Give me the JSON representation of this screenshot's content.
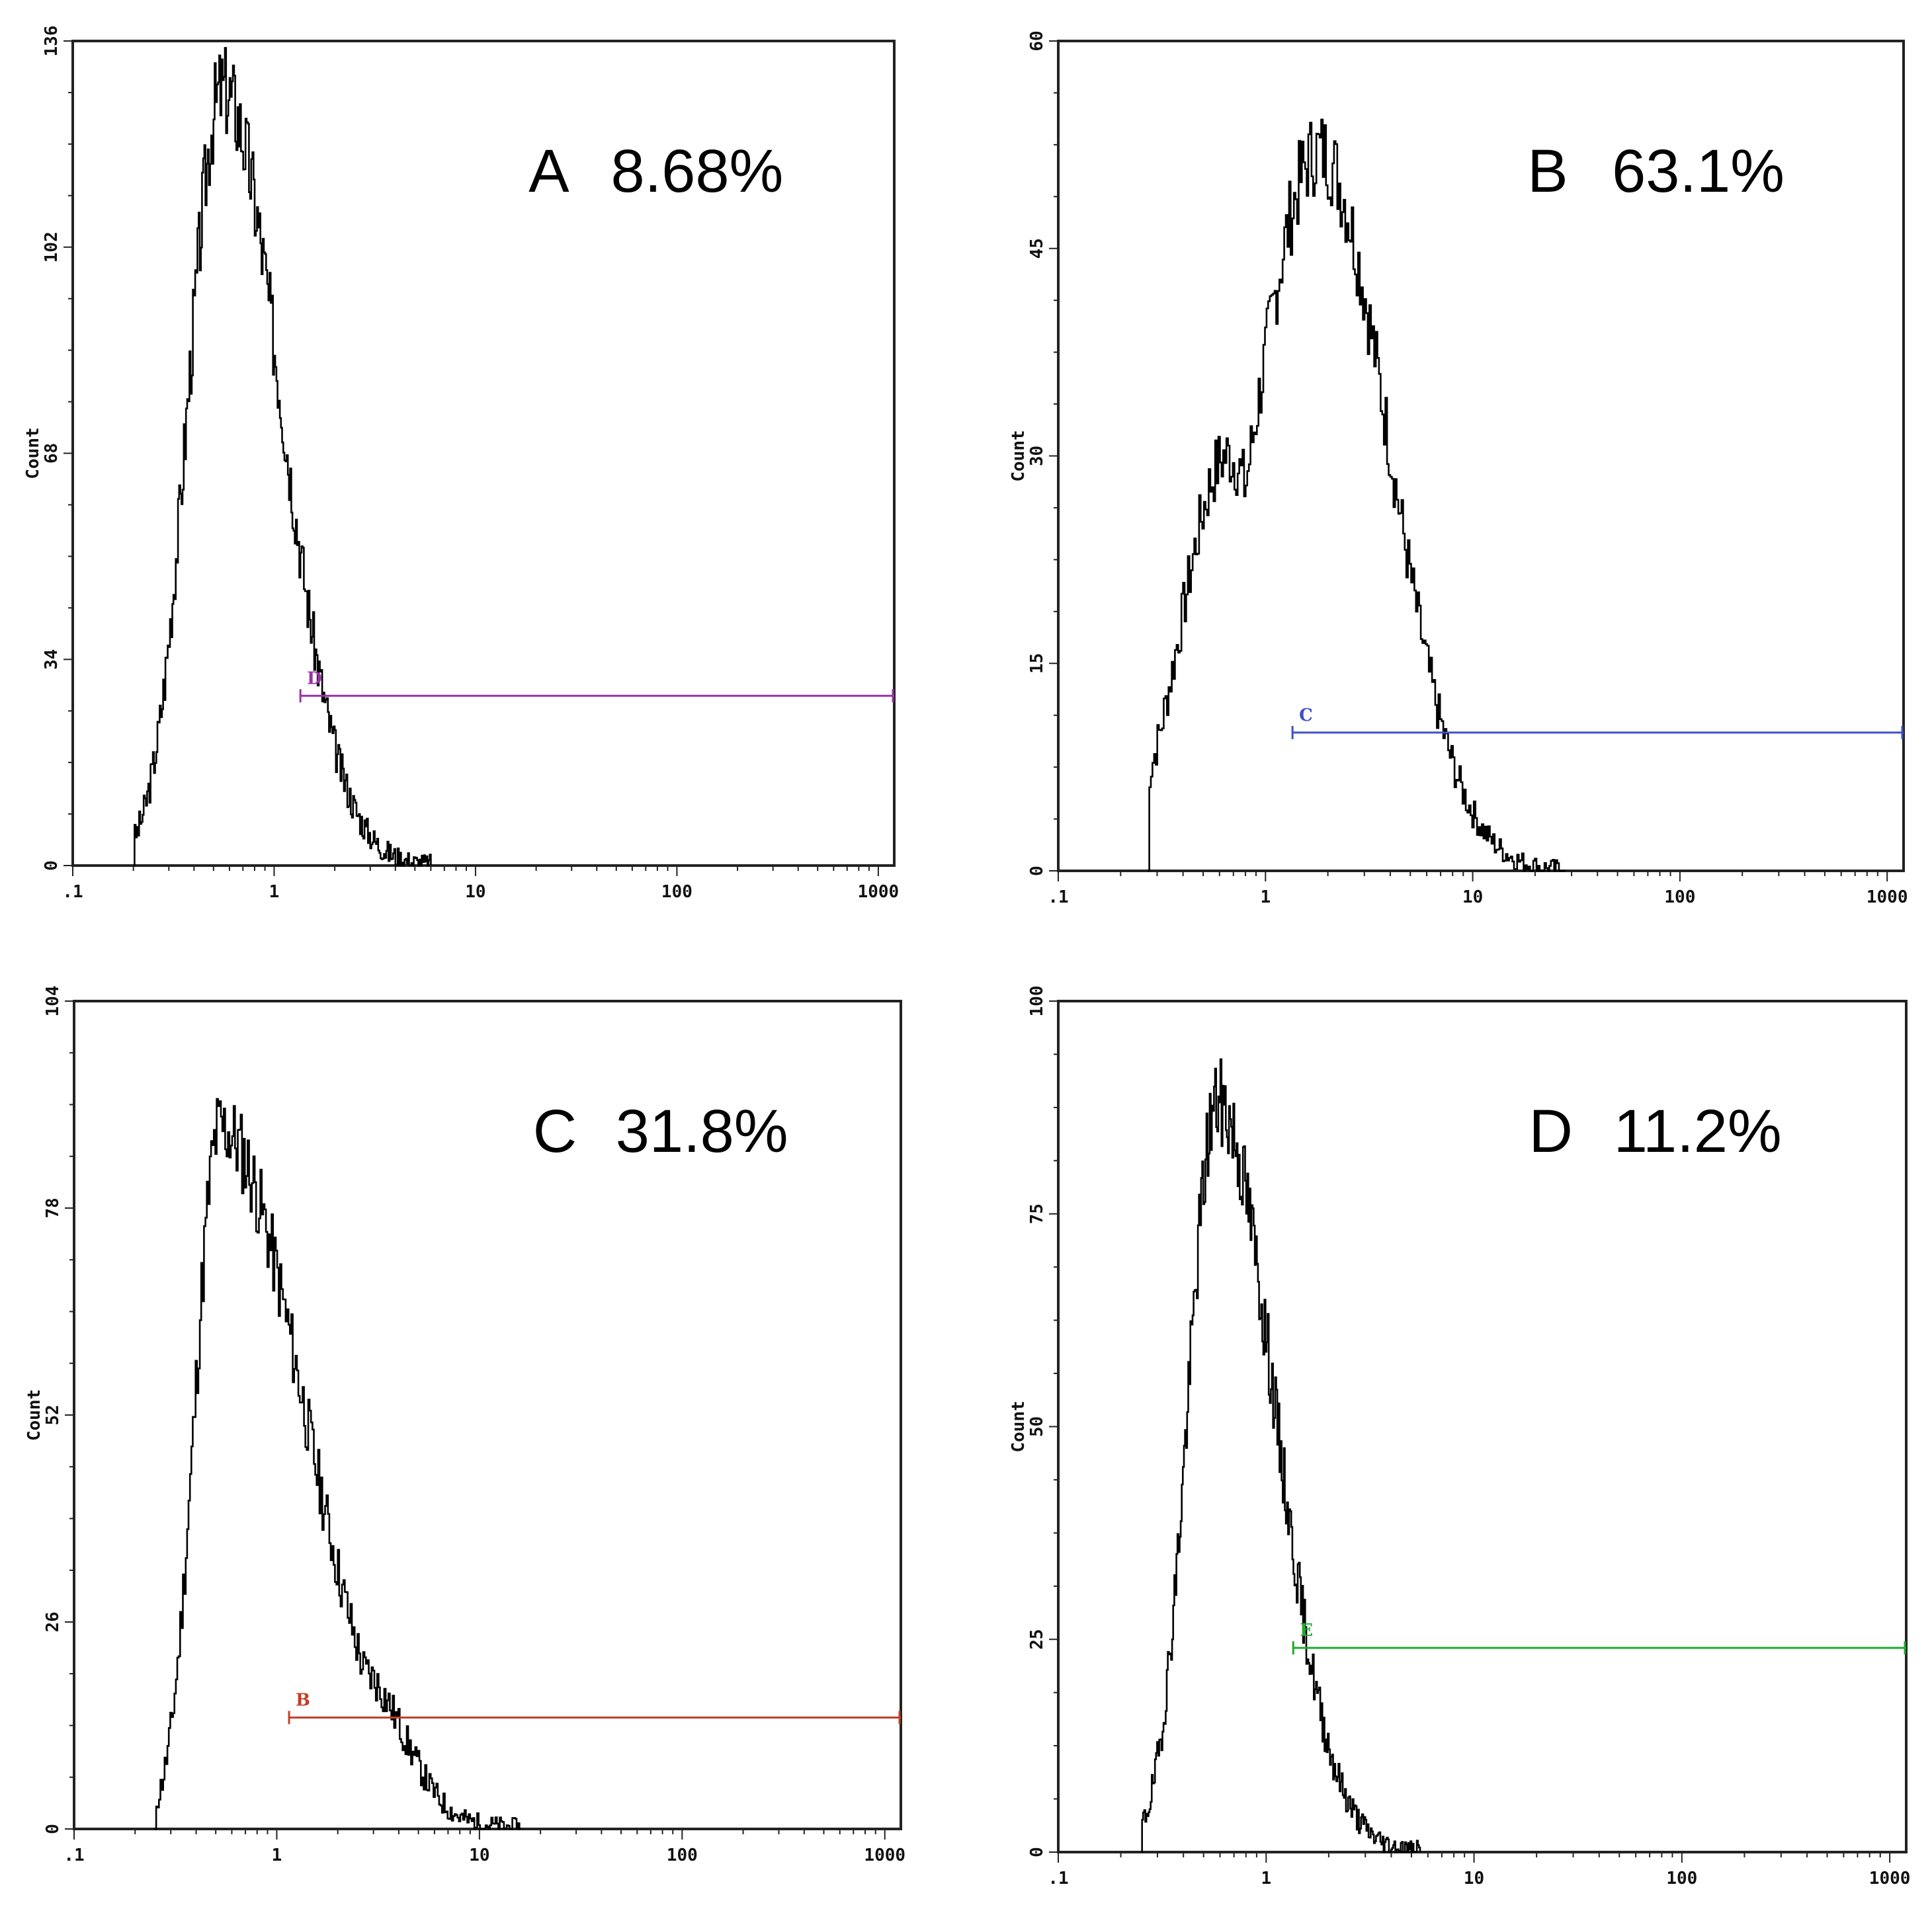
{
  "figure": {
    "shared_axis_label": "Count",
    "x_scale": "log",
    "x_range": [
      0.1,
      1200
    ],
    "x_ticks": [
      0.1,
      1,
      10,
      100,
      1000
    ],
    "x_tick_labels": [
      ".1",
      "1",
      "10",
      "100",
      "1000"
    ]
  },
  "chart_data": [
    {
      "type": "histogram",
      "panel": "A",
      "percent": "8.68%",
      "ylabel": "Count",
      "ylim": [
        0,
        136
      ],
      "y_ticks": [
        0,
        34,
        68,
        102,
        136
      ],
      "y_tick_labels": [
        "0",
        "34",
        "68",
        "102",
        "136"
      ],
      "peak_x": 0.55,
      "peak_y": 128,
      "x_min": 0.2,
      "x_max": 6,
      "shoulder": null,
      "gate": {
        "label": "D",
        "color": "#9b30a8",
        "x_start": 1.35,
        "x_end": 1200,
        "y": 28
      },
      "noise_seed": 3
    },
    {
      "type": "histogram",
      "panel": "B",
      "percent": "63.1%",
      "ylabel": "Count",
      "ylim": [
        0,
        60
      ],
      "y_ticks": [
        0,
        15,
        30,
        45,
        60
      ],
      "y_tick_labels": [
        "0",
        "15",
        "30",
        "45",
        "60"
      ],
      "peak_x": 1.8,
      "peak_y": 52,
      "x_min": 0.27,
      "x_max": 28,
      "shoulder": {
        "x": 0.65,
        "y": 30
      },
      "gate": {
        "label": "C",
        "color": "#4050c8",
        "x_start": 1.35,
        "x_end": 1200,
        "y": 10
      },
      "noise_seed": 7
    },
    {
      "type": "histogram",
      "panel": "C",
      "percent": "31.8%",
      "ylabel": "Count",
      "ylim": [
        0,
        104
      ],
      "y_ticks": [
        0,
        26,
        52,
        78,
        104
      ],
      "y_tick_labels": [
        "0",
        "26",
        "52",
        "78",
        "104"
      ],
      "peak_x": 0.52,
      "peak_y": 88,
      "x_min": 0.25,
      "x_max": 16,
      "shoulder": {
        "x": 2.5,
        "y": 20
      },
      "gate": {
        "label": "B",
        "color": "#c04028",
        "x_start": 1.15,
        "x_end": 1200,
        "y": 14
      },
      "noise_seed": 11
    },
    {
      "type": "histogram",
      "panel": "D",
      "percent": "11.2%",
      "ylabel": "Count",
      "ylim": [
        0,
        100
      ],
      "y_ticks": [
        0,
        25,
        50,
        75,
        100
      ],
      "y_tick_labels": [
        "0",
        "25",
        "50",
        "75",
        "100"
      ],
      "peak_x": 0.58,
      "peak_y": 88,
      "x_min": 0.25,
      "x_max": 5.5,
      "shoulder": null,
      "gate": {
        "label": "E",
        "color": "#22a830",
        "x_start": 1.35,
        "x_end": 1200,
        "y": 24
      },
      "noise_seed": 19
    }
  ]
}
